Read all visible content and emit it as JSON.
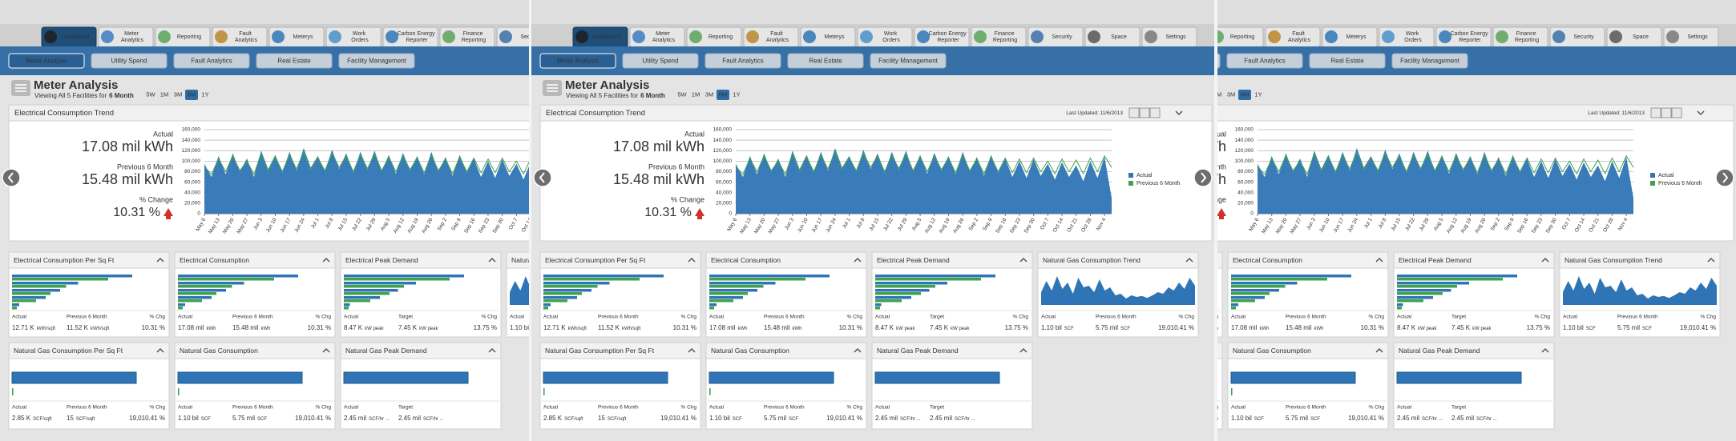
{
  "tabs": [
    "Dashboard",
    "Meter Analytics",
    "Reporting",
    "Fault Analytics",
    "Meterys",
    "Work Orders",
    "Carbon Energy Reporter",
    "Finance Reporting",
    "Security",
    "Space",
    "Settings"
  ],
  "active_tab": 0,
  "subtabs": [
    "Meter Analysis",
    "Utility Spend",
    "Fault Analytics",
    "Real Estate",
    "Facility Management"
  ],
  "active_subtab": 0,
  "page": {
    "title": "Meter Analysis",
    "subtitle": "Viewing All 5 Facilities for",
    "period": "6 Month",
    "ranges": [
      "5W",
      "1M",
      "3M",
      "6M",
      "1Y"
    ],
    "active_range": 3
  },
  "trend": {
    "title": "Electrical Consumption Trend",
    "last_updated": "Last Updated: 11/6/2013",
    "kpis": [
      {
        "label": "Actual",
        "value": "17.08 mil kWh"
      },
      {
        "label": "Previous 6 Month",
        "value": "15.48 mil kWh"
      }
    ],
    "change": {
      "label": "% Change",
      "value": "10.31 %"
    }
  },
  "chart_data": {
    "type": "area",
    "categories": [
      "May 6",
      null,
      "May 13",
      null,
      "May 20",
      null,
      "May 27",
      null,
      "Jun 3",
      null,
      "Jun 10",
      null,
      "Jun 17",
      null,
      "Jun 24",
      null,
      "Jul 1",
      null,
      "Jul 8",
      null,
      "Jul 15",
      null,
      "Jul 22",
      null,
      "Jul 29",
      null,
      "Aug 5",
      null,
      "Aug 12",
      null,
      "Aug 19",
      null,
      "Aug 26",
      null,
      "Sep 2",
      null,
      "Sep 9",
      null,
      "Sep 16",
      null,
      "Sep 23",
      null,
      "Sep 30",
      null,
      "Oct 7",
      null,
      "Oct 14",
      null,
      "Oct 21",
      null,
      "Oct 28",
      null,
      "Nov 4",
      null
    ],
    "series": [
      {
        "name": "Actual",
        "color": "#2f75b5",
        "values": [
          95000,
          70000,
          110000,
          75000,
          115000,
          80000,
          105000,
          70000,
          120000,
          85000,
          112000,
          78000,
          118000,
          82000,
          125000,
          88000,
          110000,
          80000,
          122000,
          85000,
          115000,
          78000,
          118000,
          84000,
          120000,
          80000,
          112000,
          76000,
          116000,
          82000,
          110000,
          75000,
          118000,
          80000,
          108000,
          72000,
          112000,
          78000,
          105000,
          70000,
          100000,
          68000,
          104000,
          72000,
          95000,
          65000,
          98000,
          70000,
          92000,
          62000,
          100000,
          68000,
          108000,
          30000
        ]
      },
      {
        "name": "Previous 6 Month",
        "color": "#3fa34d",
        "values": [
          90000,
          75000,
          105000,
          80000,
          110000,
          82000,
          100000,
          75000,
          115000,
          80000,
          108000,
          80000,
          112000,
          85000,
          118000,
          84000,
          106000,
          82000,
          116000,
          88000,
          110000,
          80000,
          112000,
          86000,
          114000,
          82000,
          108000,
          80000,
          110000,
          84000,
          106000,
          78000,
          112000,
          82000,
          104000,
          76000,
          108000,
          80000,
          106000,
          78000,
          104000,
          78000,
          106000,
          80000,
          100000,
          76000,
          104000,
          80000,
          102000,
          76000,
          106000,
          80000,
          110000,
          88000
        ]
      }
    ],
    "ylim": [
      0,
      160000
    ],
    "yticks": [
      0,
      {
        "value": 20000,
        "label": "20,000"
      },
      {
        "value": 40000,
        "label": "40,000"
      },
      {
        "value": 60000,
        "label": "60,000"
      },
      {
        "value": 80000,
        "label": "80,000"
      },
      {
        "value": 100000,
        "label": "100,000"
      },
      {
        "value": 120000,
        "label": "120,000"
      },
      {
        "value": 140000,
        "label": "140,000"
      },
      {
        "value": 160000,
        "label": "160,000"
      }
    ],
    "grid": true,
    "legend": "right"
  },
  "widgets": [
    {
      "title": "Electrical Consumption Per Sq Ft",
      "chart": {
        "type": "bars",
        "series": [
          {
            "color": "#2f75b5",
            "values": [
              100,
              55,
              40,
              28,
              6
            ]
          },
          {
            "color": "#3fa34d",
            "values": [
              80,
              45,
              32,
              20,
              4
            ]
          }
        ]
      },
      "stats": [
        {
          "label": "Actual",
          "value": "12.71 K",
          "unit": "kWh/sqft"
        },
        {
          "label": "Previous 6 Month",
          "value": "11.52 K",
          "unit": "kWh/sqft"
        },
        {
          "label": "% Chg",
          "value": "10.31 %"
        }
      ]
    },
    {
      "title": "Electrical Consumption",
      "chart": {
        "type": "bars",
        "series": [
          {
            "color": "#2f75b5",
            "values": [
              100,
              55,
              40,
              28,
              6
            ]
          },
          {
            "color": "#3fa34d",
            "values": [
              80,
              45,
              32,
              20,
              4
            ]
          }
        ]
      },
      "stats": [
        {
          "label": "Actual",
          "value": "17.08 mil",
          "unit": "kWh"
        },
        {
          "label": "Previous 6 Month",
          "value": "15.48 mil",
          "unit": "kWh"
        },
        {
          "label": "% Chg",
          "value": "10.31 %"
        }
      ]
    },
    {
      "title": "Electrical Peak Demand",
      "chart": {
        "type": "bars",
        "series": [
          {
            "color": "#2f75b5",
            "values": [
              100,
              60,
              45,
              30,
              5
            ]
          },
          {
            "color": "#3fa34d",
            "values": [
              88,
              50,
              38,
              22,
              4
            ]
          }
        ]
      },
      "stats": [
        {
          "label": "Actual",
          "value": "8.47 K",
          "unit": "kW peak"
        },
        {
          "label": "Target",
          "value": "7.45 K",
          "unit": "kW peak"
        },
        {
          "label": "% Chg",
          "value": "13.75 %"
        }
      ]
    },
    {
      "title": "Natural Gas Consumption Trend",
      "chart": {
        "type": "area",
        "color": "#2f75b5",
        "values": [
          40,
          75,
          45,
          90,
          50,
          70,
          35,
          85,
          55,
          60,
          40,
          80,
          45,
          55,
          30,
          35,
          20,
          30,
          25,
          28,
          22,
          30,
          40,
          35,
          55,
          45,
          70,
          50,
          85,
          60
        ]
      },
      "stats": [
        {
          "label": "Actual",
          "value": "1.10 bil",
          "unit": "SCF"
        },
        {
          "label": "Previous 6 Month",
          "value": "5.75 mil",
          "unit": "SCF"
        },
        {
          "label": "% Chg",
          "value": "19,010.41 %"
        }
      ]
    },
    {
      "title": "Natural Gas Consumption Per Sq Ft",
      "chart": {
        "type": "bars",
        "series": [
          {
            "color": "#2f75b5",
            "values": [
              100
            ]
          },
          {
            "color": "#3fa34d",
            "values": [
              1
            ]
          }
        ]
      },
      "stats": [
        {
          "label": "Actual",
          "value": "2.85 K",
          "unit": "SCF/sqft"
        },
        {
          "label": "Previous 6 Month",
          "value": "15",
          "unit": "SCF/sqft"
        },
        {
          "label": "% Chg",
          "value": "19,010.41 %"
        }
      ]
    },
    {
      "title": "Natural Gas Consumption",
      "chart": {
        "type": "bars",
        "series": [
          {
            "color": "#2f75b5",
            "values": [
              100
            ]
          },
          {
            "color": "#3fa34d",
            "values": [
              1
            ]
          }
        ]
      },
      "stats": [
        {
          "label": "Actual",
          "value": "1.10 bil",
          "unit": "SCF"
        },
        {
          "label": "Previous 6 Month",
          "value": "5.75 mil",
          "unit": "SCF"
        },
        {
          "label": "% Chg",
          "value": "19,010.41 %"
        }
      ]
    },
    {
      "title": "Natural Gas Peak Demand",
      "chart": {
        "type": "bars",
        "series": [
          {
            "color": "#2f75b5",
            "values": [
              100
            ]
          }
        ]
      },
      "stats": [
        {
          "label": "Actual",
          "value": "2.45 mil",
          "unit": "SCF/hr ..."
        },
        {
          "label": "Target",
          "value": "2.45 mil",
          "unit": "SCF/hr ..."
        }
      ]
    }
  ]
}
